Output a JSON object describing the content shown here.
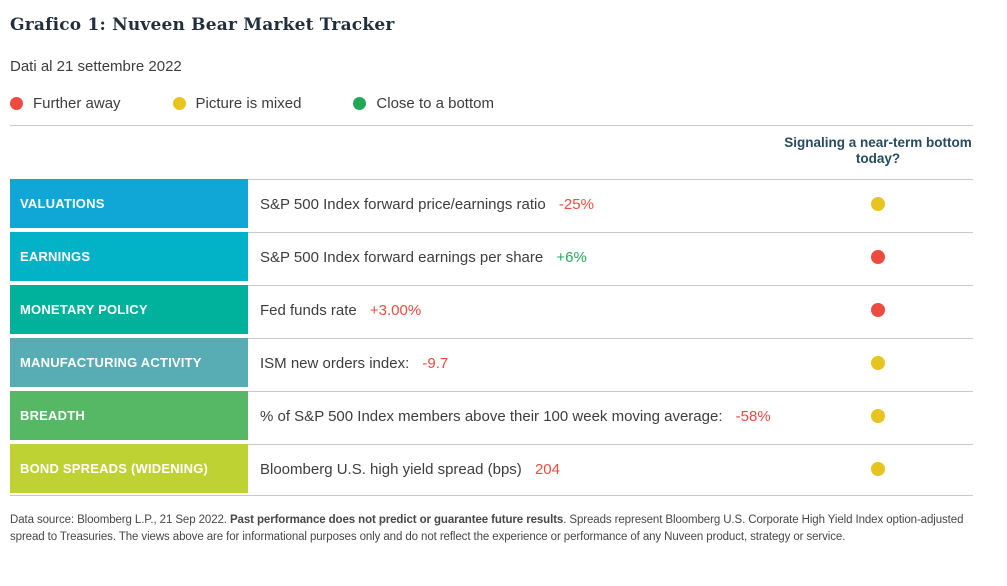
{
  "page": {
    "title": "Grafico 1: Nuveen Bear Market Tracker",
    "subtitle": "Dati al 21 settembre 2022"
  },
  "legend": {
    "items": [
      {
        "label": "Further away",
        "color": "#ee4b40"
      },
      {
        "label": "Picture is mixed",
        "color": "#e7c41f"
      },
      {
        "label": "Close to a bottom",
        "color": "#21a755"
      }
    ]
  },
  "table": {
    "signal_header": "Signaling a near-term bottom today?",
    "rows": [
      {
        "category": "VALUATIONS",
        "category_bg": "#10a7d6",
        "metric": "S&P 500 Index forward price/earnings ratio",
        "value": "-25%",
        "value_color": "#ee4b40",
        "signal": "Picture is mixed",
        "signal_color": "#e7c41f"
      },
      {
        "category": "EARNINGS",
        "category_bg": "#02b2c6",
        "metric": "S&P 500 Index forward earnings per share",
        "value": "+6%",
        "value_color": "#27a95f",
        "signal": "Further away",
        "signal_color": "#ee4b40"
      },
      {
        "category": "MONETARY POLICY",
        "category_bg": "#00b19c",
        "metric": "Fed funds rate",
        "value": "+3.00%",
        "value_color": "#ee4b40",
        "signal": "Further away",
        "signal_color": "#ee4b40"
      },
      {
        "category": "MANUFACTURING ACTIVITY",
        "category_bg": "#58acb4",
        "metric": "ISM new orders index:",
        "value": "-9.7",
        "value_color": "#ee4b40",
        "signal": "Picture is mixed",
        "signal_color": "#e7c41f"
      },
      {
        "category": "BREADTH",
        "category_bg": "#56b865",
        "metric": "% of S&P 500 Index members above their 100 week moving average:",
        "value": "-58%",
        "value_color": "#ee4b40",
        "signal": "Picture is mixed",
        "signal_color": "#e7c41f"
      },
      {
        "category": "BOND SPREADS (WIDENING)",
        "category_bg": "#bed233",
        "metric": "Bloomberg U.S. high yield spread (bps)",
        "value": "204",
        "value_color": "#ee4b40",
        "signal": "Picture is mixed",
        "signal_color": "#e7c41f"
      }
    ]
  },
  "footer": {
    "prefix": "Data source: Bloomberg L.P., 21 Sep 2022. ",
    "bold": "Past performance does not predict or guarantee future results",
    "suffix": ". Spreads represent Bloomberg U.S. Corporate High Yield Index option-adjusted spread to Treasuries. The views above are for informational purposes only and do not reflect the experience or performance of any Nuveen product, strategy or service."
  },
  "chart_data": {
    "type": "table",
    "title": "Grafico 1: Nuveen Bear Market Tracker",
    "subtitle": "Dati al 21 settembre 2022",
    "legend": [
      {
        "status": "Further away",
        "color": "red"
      },
      {
        "status": "Picture is mixed",
        "color": "yellow"
      },
      {
        "status": "Close to a bottom",
        "color": "green"
      }
    ],
    "columns": [
      "Category",
      "Metric",
      "Value",
      "Signaling a near-term bottom today?"
    ],
    "rows": [
      [
        "VALUATIONS",
        "S&P 500 Index forward price/earnings ratio",
        "-25%",
        "Picture is mixed (yellow)"
      ],
      [
        "EARNINGS",
        "S&P 500 Index forward earnings per share",
        "+6%",
        "Further away (red)"
      ],
      [
        "MONETARY POLICY",
        "Fed funds rate",
        "+3.00%",
        "Further away (red)"
      ],
      [
        "MANUFACTURING ACTIVITY",
        "ISM new orders index:",
        "-9.7",
        "Picture is mixed (yellow)"
      ],
      [
        "BREADTH",
        "% of S&P 500 Index members above their 100 week moving average:",
        "-58%",
        "Picture is mixed (yellow)"
      ],
      [
        "BOND SPREADS (WIDENING)",
        "Bloomberg U.S. high yield spread (bps)",
        "204",
        "Picture is mixed (yellow)"
      ]
    ]
  }
}
